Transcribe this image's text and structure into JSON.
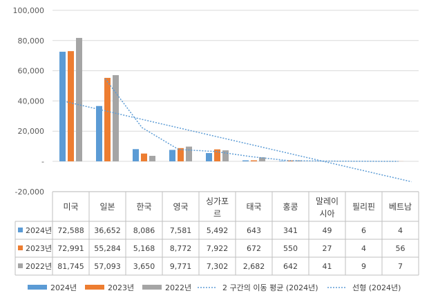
{
  "chart_data": {
    "type": "bar",
    "title": "",
    "xlabel": "",
    "ylabel": "",
    "ylim": [
      -20000,
      100000
    ],
    "y_ticks": [
      {
        "value": 100000,
        "label": "100,000"
      },
      {
        "value": 80000,
        "label": "80,000"
      },
      {
        "value": 60000,
        "label": "60,000"
      },
      {
        "value": 40000,
        "label": "40,000"
      },
      {
        "value": 20000,
        "label": "20,000"
      },
      {
        "value": 0,
        "label": "-"
      },
      {
        "value": -20000,
        "label": "-20,000"
      }
    ],
    "categories": [
      [
        "미국"
      ],
      [
        "일본"
      ],
      [
        "한국"
      ],
      [
        "영국"
      ],
      [
        "싱가포",
        "르"
      ],
      [
        "태국"
      ],
      [
        "홍콩"
      ],
      [
        "말레이",
        "시아"
      ],
      [
        "필리핀"
      ],
      [
        "베트남"
      ]
    ],
    "series": [
      {
        "name": "2024년",
        "color": "#5b9bd5",
        "values": [
          72588,
          36652,
          8086,
          7581,
          5492,
          643,
          341,
          49,
          6,
          4
        ],
        "labels": [
          "72,588",
          "36,652",
          "8,086",
          "7,581",
          "5,492",
          "643",
          "341",
          "49",
          "6",
          "4"
        ]
      },
      {
        "name": "2023년",
        "color": "#ed7d31",
        "values": [
          72991,
          55284,
          5168,
          8772,
          7922,
          672,
          550,
          27,
          4,
          56
        ],
        "labels": [
          "72,991",
          "55,284",
          "5,168",
          "8,772",
          "7,922",
          "672",
          "550",
          "27",
          "4",
          "56"
        ]
      },
      {
        "name": "2022년",
        "color": "#a5a5a5",
        "values": [
          81745,
          57093,
          3650,
          9771,
          7302,
          2682,
          642,
          41,
          9,
          7
        ],
        "labels": [
          "81,745",
          "57,093",
          "3,650",
          "9,771",
          "7,302",
          "2,682",
          "642",
          "41",
          "9",
          "7"
        ]
      }
    ],
    "trendlines": [
      {
        "name": "2 구간의 이동 평균 (2024년)",
        "type": "moving_average",
        "period": 2,
        "series": "2024년",
        "color": "#5b9bd5"
      },
      {
        "name": "선형 (2024년)",
        "type": "linear",
        "series": "2024년",
        "color": "#5b9bd5"
      }
    ],
    "legend_position": "bottom",
    "grid": true,
    "data_table": true
  }
}
